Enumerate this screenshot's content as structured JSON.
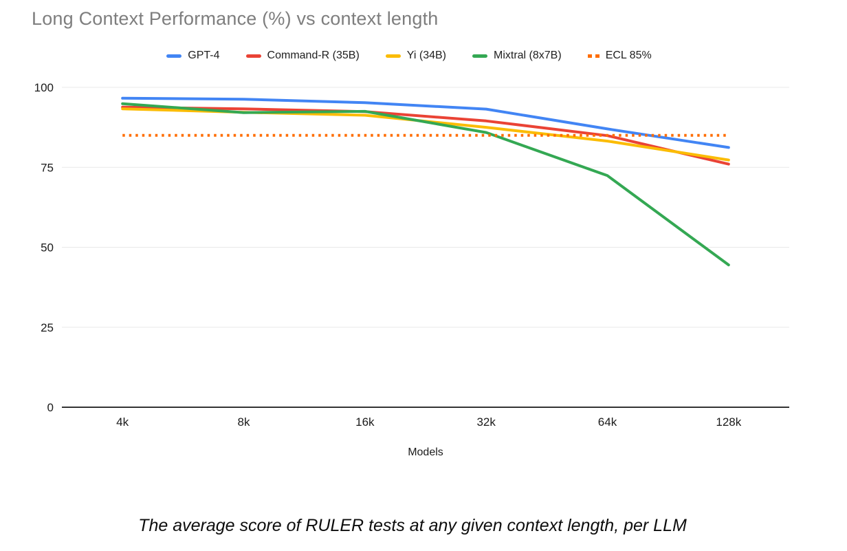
{
  "page": {
    "title": "Long Context Performance (%) vs context length",
    "caption": "The average score of RULER tests at any given context length, per LLM"
  },
  "legend": {
    "position": "top",
    "items": [
      {
        "label": "GPT-4",
        "color": "#4285f4",
        "style": "solid"
      },
      {
        "label": "Command-R (35B)",
        "color": "#ea4335",
        "style": "solid"
      },
      {
        "label": "Yi (34B)",
        "color": "#fbbc04",
        "style": "solid"
      },
      {
        "label": "Mixtral (8x7B)",
        "color": "#34a853",
        "style": "solid"
      },
      {
        "label": "ECL 85%",
        "color": "#ff6d01",
        "style": "dotted"
      }
    ]
  },
  "chart_data": {
    "type": "line",
    "title": "Long Context Performance (%) vs context length",
    "x": [
      "4k",
      "8k",
      "16k",
      "32k",
      "64k",
      "128k"
    ],
    "xlabel": "Models",
    "ylabel": "",
    "ylim": [
      0,
      100
    ],
    "yticks": [
      0,
      25,
      50,
      75,
      100
    ],
    "grid": true,
    "legend_position": "top",
    "series": [
      {
        "name": "GPT-4",
        "color": "#4285f4",
        "style": "solid",
        "values": [
          96.6,
          96.3,
          95.2,
          93.2,
          87.0,
          81.2
        ]
      },
      {
        "name": "Command-R (35B)",
        "color": "#ea4335",
        "style": "solid",
        "values": [
          93.8,
          93.3,
          92.4,
          89.5,
          84.9,
          76.0
        ]
      },
      {
        "name": "Yi (34B)",
        "color": "#fbbc04",
        "style": "solid",
        "values": [
          93.3,
          92.2,
          91.3,
          87.5,
          83.2,
          77.3
        ]
      },
      {
        "name": "Mixtral (8x7B)",
        "color": "#34a853",
        "style": "solid",
        "values": [
          94.9,
          92.1,
          92.5,
          85.9,
          72.4,
          44.5
        ]
      },
      {
        "name": "ECL 85%",
        "color": "#ff6d01",
        "style": "dotted",
        "values": [
          85,
          85,
          85,
          85,
          85,
          85
        ]
      }
    ],
    "axis_colors": {
      "tick_label": "#1a1a1a",
      "gridline": "#e9e9e9",
      "axis_line": "#333333"
    }
  }
}
